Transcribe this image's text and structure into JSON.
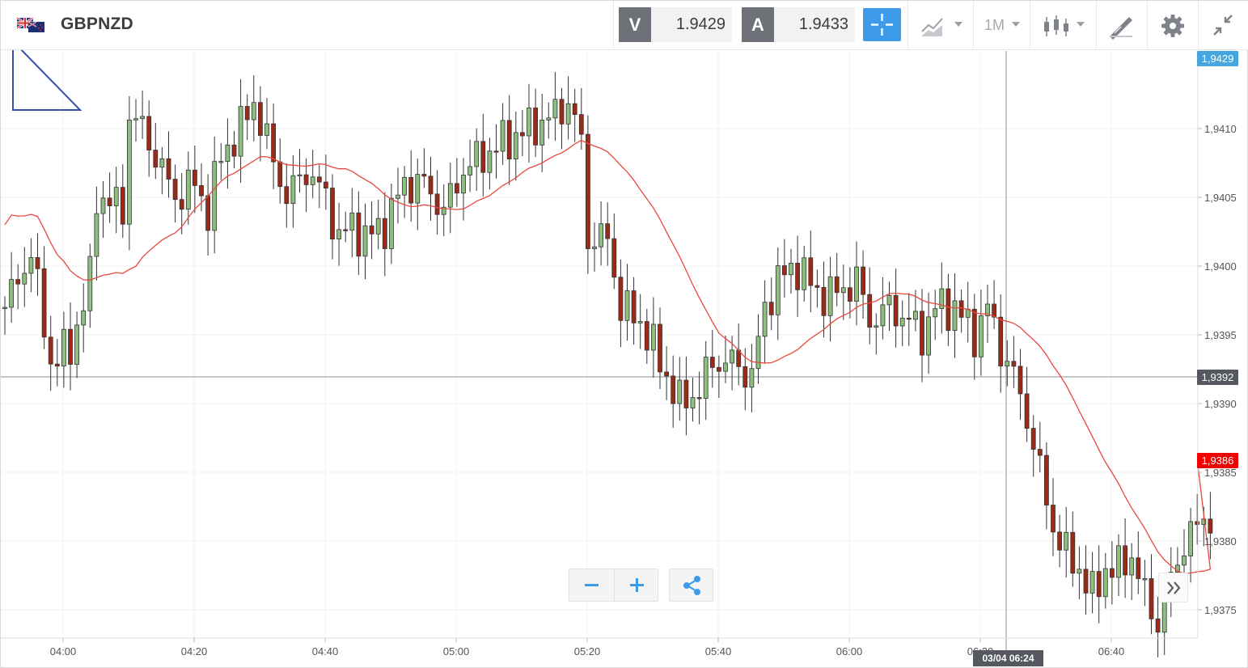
{
  "header": {
    "symbol": "GBPNZD",
    "flag_icon": "gbp-nzd-flag-icon",
    "sell": {
      "label": "V",
      "value": "1.9429"
    },
    "buy": {
      "label": "A",
      "value": "1.9433"
    },
    "timeframe": "1M",
    "tools": [
      "crosshair-icon",
      "chart-type-icon",
      "timeframe-selector",
      "indicators-icon",
      "drawing-tools-icon",
      "gear-icon",
      "collapse-icon"
    ]
  },
  "colors": {
    "accent": "#3e9be9",
    "bull": "#8fbf7e",
    "bear": "#9b2a16",
    "ma_line": "#e8483f",
    "crosshair_tag": "#55595f",
    "bid_tag": "#46a6e0",
    "ma_tag": "#f00000"
  },
  "price_axis": {
    "labels": [
      "1,9410",
      "1,9405",
      "1,9400",
      "1,9395",
      "1,9390",
      "1,9385",
      "1,9380",
      "1,9375"
    ],
    "bid_tag": "1,9429",
    "crosshair_tag": "1,9392",
    "ma_tag": "1,9386"
  },
  "time_axis": {
    "labels": [
      "04:00",
      "04:20",
      "04:40",
      "05:00",
      "05:20",
      "05:40",
      "06:00",
      "06:20",
      "06:40"
    ],
    "crosshair_tag": "03/04 06:24"
  },
  "controls": {
    "zoom_out": "−",
    "zoom_in": "+"
  }
}
